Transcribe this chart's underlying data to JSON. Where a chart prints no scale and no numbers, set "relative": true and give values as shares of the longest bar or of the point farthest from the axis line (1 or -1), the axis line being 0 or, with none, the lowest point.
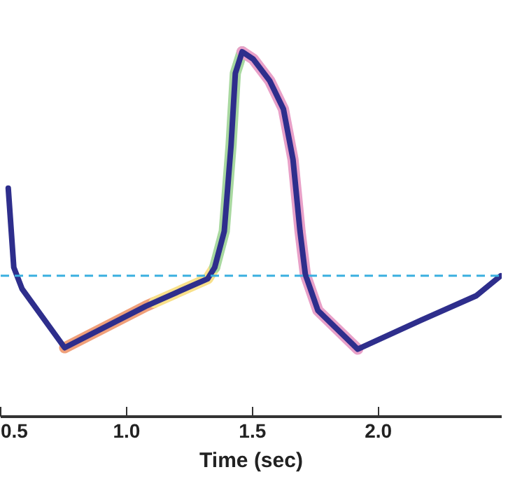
{
  "chart_data": {
    "type": "line",
    "relative": true,
    "xlabel": "Time (sec)",
    "x": [
      0.53,
      0.552,
      0.585,
      0.754,
      1.077,
      1.322,
      1.35,
      1.388,
      1.415,
      1.432,
      1.459,
      1.503,
      1.568,
      1.623,
      1.661,
      1.689,
      1.71,
      1.76,
      1.918,
      2.169,
      2.388,
      2.486
    ],
    "xlim": [
      0.5,
      2.49
    ],
    "xticks": [
      0.5,
      {
        "value": 1,
        "label": "1.0"
      },
      1.5,
      {
        "value": 2,
        "label": "2.0"
      }
    ],
    "series": [
      {
        "color": "#f0a07a",
        "x": [
          0.754,
          1.077,
          1.11
        ],
        "values": [
          0.189,
          0.303,
          0.313
        ]
      },
      {
        "color": "#f8e08a",
        "x": [
          1.11,
          1.322,
          1.35
        ],
        "values": [
          0.313,
          0.378,
          0.409
        ]
      },
      {
        "color": "#a8d8a0",
        "x": [
          1.35,
          1.388,
          1.415,
          1.432,
          1.459
        ],
        "values": [
          0.409,
          0.508,
          0.744,
          0.941,
          1.0
        ]
      },
      {
        "color": "#e8a0c8",
        "x": [
          1.459,
          1.503,
          1.568,
          1.623,
          1.661,
          1.689,
          1.71,
          1.76,
          1.918
        ],
        "values": [
          1.0,
          0.98,
          0.921,
          0.843,
          0.705,
          0.508,
          0.39,
          0.291,
          0.185
        ]
      },
      {
        "color": "#2e2e8c",
        "values": [
          0.626,
          0.409,
          0.35,
          0.189,
          0.303,
          0.378,
          0.409,
          0.508,
          0.744,
          0.941,
          1.0,
          0.98,
          0.921,
          0.843,
          0.705,
          0.508,
          0.39,
          0.291,
          0.185,
          0.264,
          0.331,
          0.386
        ]
      }
    ],
    "ref_lines": [
      {
        "axis": "y",
        "value": 0.386,
        "color": "#3bb0e0",
        "line_style": "dashed"
      }
    ],
    "grid": false
  }
}
